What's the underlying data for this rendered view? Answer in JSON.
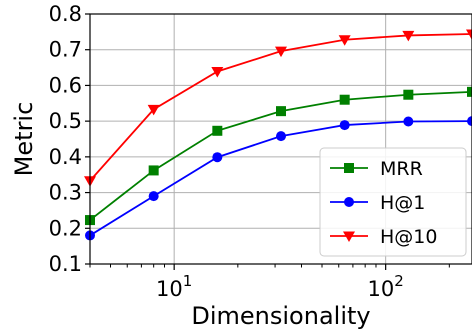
{
  "chart_data": {
    "type": "line",
    "xlabel": "Dimensionality",
    "ylabel": "Metric",
    "xscale": "log",
    "xlim": [
      4,
      256
    ],
    "ylim": [
      0.1,
      0.8
    ],
    "grid": true,
    "legend_position": "lower-right",
    "x": [
      4,
      8,
      16,
      32,
      64,
      128,
      256
    ],
    "y_ticks": [
      "0.1",
      "0.2",
      "0.3",
      "0.4",
      "0.5",
      "0.6",
      "0.7",
      "0.8"
    ],
    "x_ticks": [
      {
        "value": 10,
        "base": "10",
        "exp": "1"
      },
      {
        "value": 100,
        "base": "10",
        "exp": "2"
      }
    ],
    "series": [
      {
        "name": "MRR",
        "color": "#008000",
        "marker": "square",
        "values": [
          0.223,
          0.362,
          0.473,
          0.528,
          0.56,
          0.574,
          0.582
        ]
      },
      {
        "name": "H@1",
        "color": "#0000ff",
        "marker": "circle",
        "values": [
          0.18,
          0.29,
          0.399,
          0.458,
          0.489,
          0.499,
          0.5
        ]
      },
      {
        "name": "H@10",
        "color": "#ff0000",
        "marker": "triangle-down",
        "values": [
          0.333,
          0.533,
          0.639,
          0.696,
          0.728,
          0.74,
          0.744
        ]
      }
    ]
  }
}
